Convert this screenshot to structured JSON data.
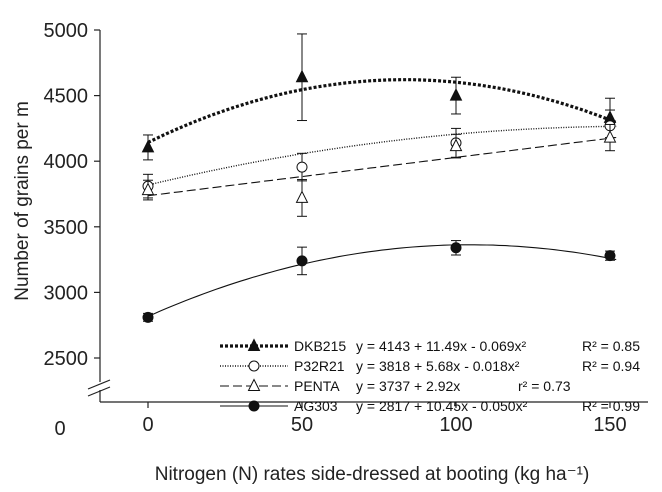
{
  "chart_data": {
    "type": "line",
    "title": "",
    "xlabel": "Nitrogen (N) rates side-dressed at booting (kg ha⁻¹)",
    "ylabel": "Number of grains per m",
    "xlim": [
      -13,
      166
    ],
    "ylim": [
      2050,
      5000
    ],
    "x_ticks": [
      0,
      50,
      100,
      150
    ],
    "y_ticks": [
      2500,
      3000,
      3500,
      4000,
      4500,
      5000
    ],
    "y_ticks_labels": [
      "2500",
      "3000",
      "3500",
      "4000",
      "4500",
      "5000"
    ],
    "y_break_label": "0",
    "axis_break": true,
    "grid": false,
    "legend_position": "bottom-right",
    "series": [
      {
        "name": "DKB215",
        "marker": "filled-triangle",
        "linestyle": "dotted-bold",
        "x": [
          0,
          50,
          100,
          150
        ],
        "y": [
          4105,
          4640,
          4500,
          4330
        ],
        "yerr": [
          95,
          330,
          140,
          150
        ],
        "fit": {
          "a": 4143,
          "b": 11.49,
          "c": -0.069
        },
        "equation": "y = 4143 + 11.49x  - 0.069x²",
        "r2": "R² = 0.85"
      },
      {
        "name": "P32R21",
        "marker": "open-circle",
        "linestyle": "dotted-fine",
        "x": [
          0,
          50,
          100,
          150
        ],
        "y": [
          3810,
          3955,
          4140,
          4270
        ],
        "yerr": [
          90,
          105,
          110,
          120
        ],
        "fit": {
          "a": 3818,
          "b": 5.68,
          "c": -0.018
        },
        "equation": "y = 3818 + 5.68x  - 0.018x²",
        "r2": "R² = 0.94"
      },
      {
        "name": "PENTA",
        "marker": "open-triangle",
        "linestyle": "dashed",
        "x": [
          0,
          50,
          100,
          150
        ],
        "y": [
          3780,
          3720,
          4115,
          4180
        ],
        "yerr": [
          75,
          140,
          90,
          100
        ],
        "fit": {
          "a": 3737,
          "b": 2.92,
          "c": 0
        },
        "equation": "y = 3737 + 2.92x",
        "r2": "r² = 0.73"
      },
      {
        "name": "AG303",
        "marker": "filled-circle",
        "linestyle": "solid",
        "x": [
          0,
          50,
          100,
          150
        ],
        "y": [
          2810,
          3240,
          3340,
          3280
        ],
        "yerr": [
          30,
          105,
          55,
          35
        ],
        "fit": {
          "a": 2817,
          "b": 10.45,
          "c": -0.05
        },
        "equation": "y = 2817 + 10.45x  - 0.050x²",
        "r2": "R² = 0.99"
      }
    ]
  }
}
